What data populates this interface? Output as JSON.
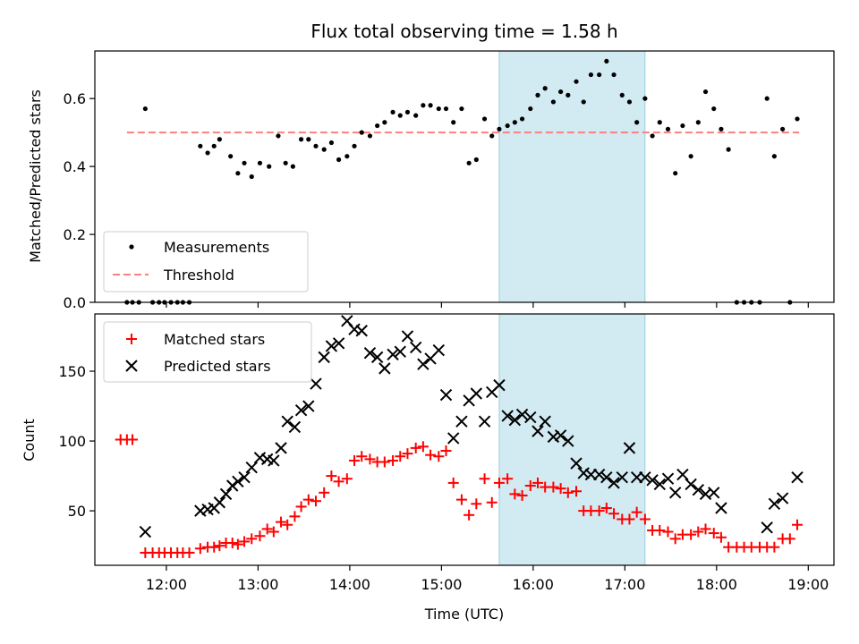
{
  "chart_data": {
    "type": "scatter",
    "title": "Flux total observing time = 1.58 h",
    "xlabel": "Time (UTC)",
    "x_tick_labels": [
      "12:00",
      "13:00",
      "14:00",
      "15:00",
      "16:00",
      "17:00",
      "18:00",
      "19:00"
    ],
    "x_ticks": [
      12,
      13,
      14,
      15,
      16,
      17,
      18,
      19
    ],
    "xlim": [
      11.22,
      19.28
    ],
    "highlight": {
      "x_range": [
        15.63,
        17.22
      ],
      "color": "#add8e6"
    },
    "top_panel": {
      "ylabel": "Matched/Predicted stars",
      "ylim": [
        0,
        0.74
      ],
      "y_ticks": [
        0.0,
        0.2,
        0.4,
        0.6
      ],
      "y_tick_labels": [
        "0.0",
        "0.2",
        "0.4",
        "0.6"
      ],
      "legend": {
        "position": "lower-left",
        "entries": [
          "Measurements",
          "Threshold"
        ]
      },
      "threshold": {
        "name": "Threshold",
        "value": 0.5,
        "x_range": [
          11.57,
          18.9
        ],
        "color": "#ff7f7f"
      },
      "measurements": {
        "name": "Measurements",
        "color": "#000000",
        "points": [
          [
            11.57,
            0
          ],
          [
            11.63,
            0
          ],
          [
            11.7,
            0
          ],
          [
            11.77,
            0.57
          ],
          [
            11.85,
            0
          ],
          [
            11.92,
            0
          ],
          [
            11.98,
            0
          ],
          [
            12.05,
            0
          ],
          [
            12.12,
            0
          ],
          [
            12.18,
            0
          ],
          [
            12.25,
            0
          ],
          [
            12.37,
            0.46
          ],
          [
            12.45,
            0.44
          ],
          [
            12.52,
            0.46
          ],
          [
            12.58,
            0.48
          ],
          [
            12.7,
            0.43
          ],
          [
            12.78,
            0.38
          ],
          [
            12.85,
            0.41
          ],
          [
            12.93,
            0.37
          ],
          [
            13.02,
            0.41
          ],
          [
            13.12,
            0.4
          ],
          [
            13.22,
            0.49
          ],
          [
            13.3,
            0.41
          ],
          [
            13.38,
            0.4
          ],
          [
            13.47,
            0.48
          ],
          [
            13.55,
            0.48
          ],
          [
            13.63,
            0.46
          ],
          [
            13.72,
            0.45
          ],
          [
            13.8,
            0.47
          ],
          [
            13.88,
            0.42
          ],
          [
            13.97,
            0.43
          ],
          [
            14.05,
            0.46
          ],
          [
            14.13,
            0.5
          ],
          [
            14.22,
            0.49
          ],
          [
            14.3,
            0.52
          ],
          [
            14.38,
            0.53
          ],
          [
            14.47,
            0.56
          ],
          [
            14.55,
            0.55
          ],
          [
            14.63,
            0.56
          ],
          [
            14.72,
            0.55
          ],
          [
            14.8,
            0.58
          ],
          [
            14.88,
            0.58
          ],
          [
            14.97,
            0.57
          ],
          [
            15.05,
            0.57
          ],
          [
            15.13,
            0.53
          ],
          [
            15.22,
            0.57
          ],
          [
            15.3,
            0.41
          ],
          [
            15.38,
            0.42
          ],
          [
            15.47,
            0.54
          ],
          [
            15.55,
            0.49
          ],
          [
            15.63,
            0.51
          ],
          [
            15.72,
            0.52
          ],
          [
            15.8,
            0.53
          ],
          [
            15.88,
            0.54
          ],
          [
            15.97,
            0.57
          ],
          [
            16.05,
            0.61
          ],
          [
            16.13,
            0.63
          ],
          [
            16.22,
            0.59
          ],
          [
            16.3,
            0.62
          ],
          [
            16.38,
            0.61
          ],
          [
            16.47,
            0.65
          ],
          [
            16.55,
            0.59
          ],
          [
            16.63,
            0.67
          ],
          [
            16.72,
            0.67
          ],
          [
            16.8,
            0.71
          ],
          [
            16.88,
            0.67
          ],
          [
            16.97,
            0.61
          ],
          [
            17.05,
            0.59
          ],
          [
            17.13,
            0.53
          ],
          [
            17.22,
            0.6
          ],
          [
            17.3,
            0.49
          ],
          [
            17.38,
            0.53
          ],
          [
            17.47,
            0.51
          ],
          [
            17.55,
            0.38
          ],
          [
            17.63,
            0.52
          ],
          [
            17.72,
            0.43
          ],
          [
            17.8,
            0.53
          ],
          [
            17.88,
            0.62
          ],
          [
            17.97,
            0.57
          ],
          [
            18.05,
            0.51
          ],
          [
            18.13,
            0.45
          ],
          [
            18.22,
            0
          ],
          [
            18.3,
            0
          ],
          [
            18.38,
            0
          ],
          [
            18.47,
            0
          ],
          [
            18.55,
            0.6
          ],
          [
            18.63,
            0.43
          ],
          [
            18.72,
            0.51
          ],
          [
            18.8,
            0
          ],
          [
            18.88,
            0.54
          ]
        ]
      }
    },
    "bottom_panel": {
      "ylabel": "Count",
      "ylim": [
        11,
        191
      ],
      "y_ticks": [
        50,
        100,
        150
      ],
      "y_tick_labels": [
        "50",
        "100",
        "150"
      ],
      "legend": {
        "position": "upper-left",
        "entries": [
          "Matched stars",
          "Predicted stars"
        ]
      },
      "series": [
        {
          "name": "Matched stars",
          "marker": "plus",
          "color": "#ff0000",
          "points": [
            [
              11.5,
              101
            ],
            [
              11.57,
              101
            ],
            [
              11.63,
              101
            ],
            [
              11.77,
              20
            ],
            [
              11.85,
              20
            ],
            [
              11.92,
              20
            ],
            [
              11.98,
              20
            ],
            [
              12.05,
              20
            ],
            [
              12.12,
              20
            ],
            [
              12.18,
              20
            ],
            [
              12.25,
              20
            ],
            [
              12.37,
              23
            ],
            [
              12.45,
              24
            ],
            [
              12.52,
              24
            ],
            [
              12.58,
              25
            ],
            [
              12.65,
              27
            ],
            [
              12.72,
              27
            ],
            [
              12.78,
              26
            ],
            [
              12.85,
              28
            ],
            [
              12.93,
              30
            ],
            [
              13.02,
              32
            ],
            [
              13.1,
              37
            ],
            [
              13.17,
              35
            ],
            [
              13.25,
              42
            ],
            [
              13.32,
              40
            ],
            [
              13.4,
              46
            ],
            [
              13.47,
              53
            ],
            [
              13.55,
              58
            ],
            [
              13.63,
              57
            ],
            [
              13.72,
              63
            ],
            [
              13.8,
              75
            ],
            [
              13.88,
              71
            ],
            [
              13.97,
              73
            ],
            [
              14.05,
              86
            ],
            [
              14.13,
              89
            ],
            [
              14.22,
              87
            ],
            [
              14.3,
              85
            ],
            [
              14.38,
              85
            ],
            [
              14.47,
              86
            ],
            [
              14.55,
              89
            ],
            [
              14.63,
              91
            ],
            [
              14.72,
              95
            ],
            [
              14.8,
              96
            ],
            [
              14.88,
              90
            ],
            [
              14.97,
              89
            ],
            [
              15.05,
              93
            ],
            [
              15.13,
              70
            ],
            [
              15.22,
              58
            ],
            [
              15.3,
              47
            ],
            [
              15.38,
              55
            ],
            [
              15.47,
              73
            ],
            [
              15.55,
              56
            ],
            [
              15.63,
              70
            ],
            [
              15.72,
              73
            ],
            [
              15.8,
              62
            ],
            [
              15.88,
              61
            ],
            [
              15.97,
              68
            ],
            [
              16.05,
              70
            ],
            [
              16.13,
              67
            ],
            [
              16.22,
              67
            ],
            [
              16.3,
              66
            ],
            [
              16.38,
              63
            ],
            [
              16.47,
              64
            ],
            [
              16.55,
              50
            ],
            [
              16.63,
              50
            ],
            [
              16.72,
              50
            ],
            [
              16.8,
              52
            ],
            [
              16.88,
              48
            ],
            [
              16.97,
              44
            ],
            [
              17.05,
              44
            ],
            [
              17.13,
              49
            ],
            [
              17.22,
              44
            ],
            [
              17.3,
              36
            ],
            [
              17.38,
              36
            ],
            [
              17.47,
              35
            ],
            [
              17.55,
              30
            ],
            [
              17.63,
              33
            ],
            [
              17.72,
              33
            ],
            [
              17.8,
              35
            ],
            [
              17.88,
              37
            ],
            [
              17.97,
              34
            ],
            [
              18.05,
              31
            ],
            [
              18.13,
              24
            ],
            [
              18.22,
              24
            ],
            [
              18.3,
              24
            ],
            [
              18.38,
              24
            ],
            [
              18.47,
              24
            ],
            [
              18.55,
              24
            ],
            [
              18.63,
              24
            ],
            [
              18.72,
              30
            ],
            [
              18.8,
              30
            ],
            [
              18.88,
              40
            ]
          ]
        },
        {
          "name": "Predicted stars",
          "marker": "x",
          "color": "#000000",
          "points": [
            [
              11.77,
              35
            ],
            [
              12.37,
              50
            ],
            [
              12.45,
              51
            ],
            [
              12.52,
              52
            ],
            [
              12.58,
              56
            ],
            [
              12.65,
              62
            ],
            [
              12.72,
              68
            ],
            [
              12.78,
              71
            ],
            [
              12.85,
              74
            ],
            [
              12.93,
              81
            ],
            [
              13.02,
              88
            ],
            [
              13.1,
              87
            ],
            [
              13.17,
              86
            ],
            [
              13.25,
              95
            ],
            [
              13.32,
              114
            ],
            [
              13.4,
              110
            ],
            [
              13.47,
              122
            ],
            [
              13.55,
              125
            ],
            [
              13.63,
              141
            ],
            [
              13.72,
              160
            ],
            [
              13.8,
              168
            ],
            [
              13.88,
              170
            ],
            [
              13.97,
              186
            ],
            [
              14.05,
              180
            ],
            [
              14.13,
              179
            ],
            [
              14.22,
              163
            ],
            [
              14.3,
              160
            ],
            [
              14.38,
              152
            ],
            [
              14.47,
              162
            ],
            [
              14.55,
              164
            ],
            [
              14.63,
              175
            ],
            [
              14.72,
              167
            ],
            [
              14.8,
              155
            ],
            [
              14.88,
              159
            ],
            [
              14.97,
              165
            ],
            [
              15.05,
              133
            ],
            [
              15.13,
              102
            ],
            [
              15.22,
              114
            ],
            [
              15.3,
              129
            ],
            [
              15.38,
              134
            ],
            [
              15.47,
              114
            ],
            [
              15.55,
              135
            ],
            [
              15.63,
              140
            ],
            [
              15.72,
              118
            ],
            [
              15.8,
              115
            ],
            [
              15.88,
              119
            ],
            [
              15.97,
              117
            ],
            [
              16.05,
              107
            ],
            [
              16.13,
              114
            ],
            [
              16.22,
              103
            ],
            [
              16.3,
              104
            ],
            [
              16.38,
              100
            ],
            [
              16.47,
              84
            ],
            [
              16.55,
              77
            ],
            [
              16.63,
              76
            ],
            [
              16.72,
              76
            ],
            [
              16.8,
              74
            ],
            [
              16.88,
              70
            ],
            [
              16.97,
              74
            ],
            [
              17.05,
              95
            ],
            [
              17.13,
              74
            ],
            [
              17.22,
              74
            ],
            [
              17.3,
              72
            ],
            [
              17.38,
              69
            ],
            [
              17.47,
              73
            ],
            [
              17.55,
              63
            ],
            [
              17.63,
              76
            ],
            [
              17.72,
              69
            ],
            [
              17.8,
              65
            ],
            [
              17.88,
              62
            ],
            [
              17.97,
              63
            ],
            [
              18.05,
              52
            ],
            [
              18.55,
              38
            ],
            [
              18.63,
              55
            ],
            [
              18.72,
              59
            ],
            [
              18.88,
              74
            ]
          ]
        }
      ]
    }
  }
}
